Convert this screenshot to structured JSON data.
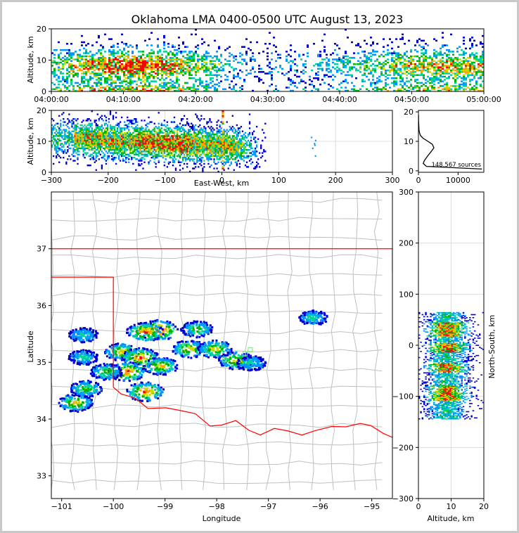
{
  "title": "Oklahoma LMA 0400-0500 UTC August 13, 2023",
  "colors": {
    "background": "#c8c8c8",
    "panel": "#ffffff",
    "state_border": "#ff0000",
    "county_lines": "#c0c0c0",
    "grid": "#dddddd"
  },
  "chart_data": [
    {
      "id": "time_height",
      "type": "heatmap",
      "xlabel": "",
      "ylabel": "Altitude, km",
      "xticks": [
        "04:00:00",
        "04:10:00",
        "04:20:00",
        "04:30:00",
        "04:40:00",
        "04:50:00",
        "05:00:00"
      ],
      "yticks": [
        "0",
        "10",
        "20"
      ],
      "xlim_minutes": [
        0,
        60
      ],
      "ylim": [
        0,
        20
      ],
      "colormap": [
        "#0000cd",
        "#0096ff",
        "#00d2a0",
        "#00b400",
        "#c8dc00",
        "#ffa000",
        "#ff0000"
      ],
      "density_profile_alt_km": [
        0,
        2,
        4,
        6,
        8,
        10,
        12,
        14,
        16,
        18,
        20
      ],
      "density_profile_rel": [
        0.9,
        0.5,
        0.55,
        0.85,
        1.0,
        0.8,
        0.45,
        0.2,
        0.08,
        0.03,
        0.01
      ]
    },
    {
      "id": "ew_altitude",
      "type": "heatmap",
      "xlabel": "East-West, km",
      "ylabel": "Altitude, km",
      "xticks": [
        "−300",
        "−200",
        "−100",
        "0",
        "100",
        "200",
        "300"
      ],
      "yticks": [
        "0",
        "10",
        "20"
      ],
      "xlim": [
        -300,
        300
      ],
      "ylim": [
        0,
        20
      ],
      "grid": true
    },
    {
      "id": "altitude_histogram",
      "type": "line",
      "xlabel": "",
      "ylabel": "",
      "annotation": "148,567 sources",
      "xticks": [
        "0",
        "10000"
      ],
      "yticks": [
        "0",
        "10",
        "20"
      ],
      "xlim": [
        0,
        16500
      ],
      "ylim": [
        -0.5,
        20.5
      ],
      "series": [
        {
          "color": "#000000",
          "x": [
            16000,
            2000,
            1200,
            1500,
            2300,
            3200,
            3900,
            3500,
            2400,
            1200,
            500,
            250,
            150,
            80,
            40,
            10
          ],
          "y": [
            0.6,
            1.5,
            2.5,
            3.5,
            5.0,
            6.5,
            7.8,
            9.0,
            10.0,
            11.0,
            12.0,
            13.0,
            14.0,
            15.5,
            17.0,
            19.0
          ]
        }
      ]
    },
    {
      "id": "plan_view_map",
      "type": "heatmap",
      "xlabel": "Longitude",
      "ylabel": "Latitude",
      "xticks": [
        "−101",
        "−100",
        "−99",
        "−98",
        "−97",
        "−96",
        "−95"
      ],
      "yticks": [
        "33",
        "34",
        "35",
        "36",
        "37"
      ],
      "xlim": [
        -101.2,
        -94.6
      ],
      "ylim": [
        32.6,
        38.0
      ],
      "cells": [
        {
          "lon": -99.15,
          "lat": 35.58,
          "level": 6
        },
        {
          "lon": -99.4,
          "lat": 35.55,
          "level": 5
        },
        {
          "lon": -99.85,
          "lat": 35.2,
          "level": 4
        },
        {
          "lon": -99.5,
          "lat": 35.1,
          "level": 5
        },
        {
          "lon": -99.75,
          "lat": 34.85,
          "level": 5
        },
        {
          "lon": -99.1,
          "lat": 34.95,
          "level": 4
        },
        {
          "lon": -99.4,
          "lat": 34.5,
          "level": 5
        },
        {
          "lon": -100.75,
          "lat": 34.3,
          "level": 4
        },
        {
          "lon": -100.55,
          "lat": 34.55,
          "level": 3
        },
        {
          "lon": -100.15,
          "lat": 34.85,
          "level": 3
        },
        {
          "lon": -100.6,
          "lat": 35.1,
          "level": 2
        },
        {
          "lon": -100.6,
          "lat": 35.5,
          "level": 2
        },
        {
          "lon": -98.55,
          "lat": 35.25,
          "level": 4
        },
        {
          "lon": -98.4,
          "lat": 35.6,
          "level": 3
        },
        {
          "lon": -98.05,
          "lat": 35.25,
          "level": 4
        },
        {
          "lon": -97.65,
          "lat": 35.05,
          "level": 4
        },
        {
          "lon": -97.35,
          "lat": 35.0,
          "level": 2
        },
        {
          "lon": -96.15,
          "lat": 35.8,
          "level": 2
        }
      ],
      "stations": [
        {
          "lon": -99.4,
          "lat": 34.95
        },
        {
          "lon": -97.45,
          "lat": 35.15
        },
        {
          "lon": -97.35,
          "lat": 35.22
        },
        {
          "lon": -97.85,
          "lat": 35.05
        },
        {
          "lon": -98.6,
          "lat": 35.3
        },
        {
          "lon": -99.6,
          "lat": 34.72
        }
      ]
    },
    {
      "id": "altitude_ns",
      "type": "heatmap",
      "xlabel": "Altitude, km",
      "ylabel": "North-South, km",
      "xticks": [
        "0",
        "10",
        "20"
      ],
      "yticks": [
        "−300",
        "−200",
        "−100",
        "0",
        "100",
        "200",
        "300"
      ],
      "xlim": [
        0,
        20
      ],
      "ylim": [
        -300,
        300
      ],
      "grid": true
    }
  ]
}
